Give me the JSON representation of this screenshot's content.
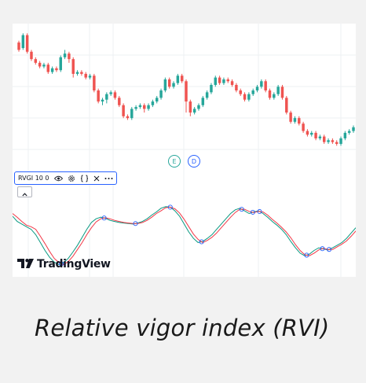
{
  "caption": "Relative vigor index (RVI)",
  "brand": "TradingView",
  "indicator": {
    "legend_label": "RVGI 10 0",
    "icons": [
      "eye-icon",
      "settings-icon",
      "source-code-icon",
      "close-icon",
      "more-icon"
    ],
    "collapse_icon": "chevron-up-icon"
  },
  "events": [
    {
      "label": "E",
      "color": "#26a69a"
    },
    {
      "label": "D",
      "color": "#2962ff"
    }
  ],
  "colors": {
    "up": "#26a69a",
    "down": "#ef5350",
    "rvi_line": "#089981",
    "signal_line": "#f23645",
    "cross_marker": "#2962ff",
    "grid": "#eef0f3"
  },
  "chart_data": [
    {
      "type": "candlestick",
      "title": "",
      "candles": [
        [
          96,
          92,
          97,
          91
        ],
        [
          93,
          100,
          101,
          92
        ],
        [
          100,
          91,
          101,
          90
        ],
        [
          91,
          87,
          92,
          86
        ],
        [
          87,
          85,
          88,
          84
        ],
        [
          85,
          83,
          86,
          82
        ],
        [
          83,
          84,
          85,
          82
        ],
        [
          84,
          80,
          85,
          79
        ],
        [
          80,
          82,
          83,
          79
        ],
        [
          82,
          81,
          83,
          80
        ],
        [
          81,
          88,
          89,
          80
        ],
        [
          88,
          90,
          92,
          87
        ],
        [
          90,
          87,
          91,
          85
        ],
        [
          87,
          79,
          88,
          77
        ],
        [
          79,
          80,
          81,
          78
        ],
        [
          80,
          79,
          81,
          78
        ],
        [
          79,
          77,
          80,
          76
        ],
        [
          77,
          78,
          79,
          76
        ],
        [
          78,
          70,
          79,
          69
        ],
        [
          70,
          64,
          71,
          63
        ],
        [
          64,
          65,
          66,
          62
        ],
        [
          65,
          68,
          69,
          63
        ],
        [
          68,
          69,
          70,
          67
        ],
        [
          69,
          66,
          70,
          65
        ],
        [
          66,
          62,
          67,
          61
        ],
        [
          62,
          56,
          63,
          55
        ],
        [
          56,
          55,
          57,
          54
        ],
        [
          55,
          60,
          61,
          54
        ],
        [
          60,
          61,
          62,
          59
        ],
        [
          61,
          62,
          63,
          60
        ],
        [
          62,
          60,
          63,
          58
        ],
        [
          60,
          62,
          63,
          59
        ],
        [
          62,
          64,
          65,
          61
        ],
        [
          64,
          66,
          67,
          63
        ],
        [
          66,
          70,
          71,
          65
        ],
        [
          70,
          76,
          77,
          69
        ],
        [
          76,
          72,
          77,
          71
        ],
        [
          72,
          74,
          75,
          71
        ],
        [
          74,
          78,
          79,
          73
        ],
        [
          78,
          75,
          79,
          74
        ],
        [
          75,
          64,
          76,
          58
        ],
        [
          64,
          58,
          65,
          56
        ],
        [
          58,
          60,
          61,
          57
        ],
        [
          60,
          62,
          63,
          59
        ],
        [
          62,
          66,
          67,
          61
        ],
        [
          66,
          69,
          70,
          65
        ],
        [
          69,
          73,
          74,
          68
        ],
        [
          73,
          77,
          78,
          72
        ],
        [
          77,
          74,
          78,
          73
        ],
        [
          74,
          76,
          77,
          73
        ],
        [
          76,
          75,
          77,
          74
        ],
        [
          75,
          73,
          76,
          72
        ],
        [
          73,
          70,
          74,
          69
        ],
        [
          70,
          68,
          71,
          67
        ],
        [
          68,
          65,
          69,
          64
        ],
        [
          65,
          68,
          69,
          64
        ],
        [
          68,
          70,
          71,
          67
        ],
        [
          70,
          72,
          73,
          69
        ],
        [
          72,
          75,
          76,
          71
        ],
        [
          75,
          70,
          76,
          69
        ],
        [
          70,
          66,
          71,
          65
        ],
        [
          66,
          68,
          69,
          65
        ],
        [
          68,
          72,
          73,
          67
        ],
        [
          72,
          66,
          73,
          65
        ],
        [
          66,
          58,
          67,
          57
        ],
        [
          58,
          53,
          59,
          52
        ],
        [
          53,
          55,
          56,
          52
        ],
        [
          55,
          52,
          56,
          51
        ],
        [
          52,
          48,
          53,
          47
        ],
        [
          48,
          46,
          49,
          45
        ],
        [
          46,
          47,
          48,
          45
        ],
        [
          47,
          44,
          48,
          43
        ],
        [
          44,
          45,
          46,
          43
        ],
        [
          45,
          42,
          46,
          41
        ],
        [
          42,
          43,
          44,
          41
        ],
        [
          43,
          42,
          44,
          41
        ],
        [
          42,
          41,
          43,
          40
        ],
        [
          41,
          44,
          45,
          40
        ],
        [
          44,
          47,
          48,
          43
        ],
        [
          47,
          48,
          49,
          46
        ],
        [
          48,
          50,
          51,
          47
        ]
      ],
      "events": [
        "E",
        "D"
      ]
    },
    {
      "type": "line",
      "title": "",
      "indicator": "RVGI 10 0",
      "series": [
        {
          "values": [
            0.2,
            0.1,
            0.05,
            0.0,
            -0.05,
            -0.15,
            -0.3,
            -0.45,
            -0.58,
            -0.67,
            -0.72,
            -0.68,
            -0.6,
            -0.48,
            -0.35,
            -0.2,
            -0.05,
            0.08,
            0.15,
            0.18,
            0.16,
            0.12,
            0.1,
            0.08,
            0.07,
            0.06,
            0.05,
            0.07,
            0.1,
            0.15,
            0.22,
            0.28,
            0.35,
            0.38,
            0.37,
            0.3,
            0.2,
            0.05,
            -0.1,
            -0.22,
            -0.3,
            -0.28,
            -0.22,
            -0.15,
            -0.05,
            0.05,
            0.15,
            0.25,
            0.32,
            0.35,
            0.3,
            0.25,
            0.28,
            0.3,
            0.25,
            0.18,
            0.1,
            0.03,
            -0.05,
            -0.15,
            -0.28,
            -0.4,
            -0.5,
            -0.55,
            -0.52,
            -0.45,
            -0.4,
            -0.42,
            -0.44,
            -0.4,
            -0.35,
            -0.3,
            -0.22,
            -0.12,
            -0.02
          ]
        },
        {
          "values": [
            0.25,
            0.18,
            0.1,
            0.03,
            0.0,
            -0.05,
            -0.18,
            -0.32,
            -0.47,
            -0.6,
            -0.68,
            -0.72,
            -0.66,
            -0.56,
            -0.43,
            -0.3,
            -0.15,
            -0.02,
            0.09,
            0.15,
            0.17,
            0.15,
            0.12,
            0.1,
            0.08,
            0.07,
            0.06,
            0.06,
            0.08,
            0.12,
            0.18,
            0.25,
            0.3,
            0.36,
            0.37,
            0.34,
            0.26,
            0.14,
            0.0,
            -0.14,
            -0.24,
            -0.3,
            -0.26,
            -0.2,
            -0.12,
            -0.02,
            0.08,
            0.18,
            0.27,
            0.33,
            0.33,
            0.29,
            0.27,
            0.29,
            0.28,
            0.22,
            0.14,
            0.07,
            -0.01,
            -0.1,
            -0.21,
            -0.34,
            -0.45,
            -0.53,
            -0.55,
            -0.5,
            -0.44,
            -0.41,
            -0.43,
            -0.43,
            -0.38,
            -0.33,
            -0.27,
            -0.18,
            -0.08
          ]
        }
      ],
      "ylim": [
        -0.8,
        0.6
      ]
    }
  ]
}
